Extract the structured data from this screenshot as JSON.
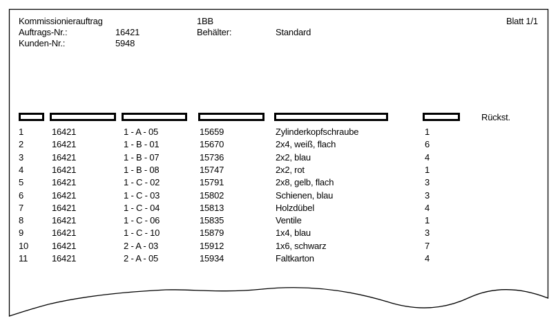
{
  "header": {
    "doc_type": "Kommissionierauftrag",
    "code": "1BB",
    "sheet": "Blatt 1/1",
    "order_label": "Auftrags-Nr.:",
    "order_value": "16421",
    "container_label": "Behälter:",
    "container_value": "Standard",
    "customer_label": "Kunden-Nr.:",
    "customer_value": "5948"
  },
  "table": {
    "columns": [
      "",
      "",
      "",
      "",
      "",
      ""
    ],
    "backorder_label": "Rückst.",
    "rows": [
      {
        "pos": "1",
        "order": "16421",
        "location": "1 - A - 05",
        "article": "15659",
        "description": "Zylinderkopfschraube",
        "qty": "1"
      },
      {
        "pos": "2",
        "order": "16421",
        "location": "1 - B - 01",
        "article": "15670",
        "description": "2x4, weiß, flach",
        "qty": "6"
      },
      {
        "pos": "3",
        "order": "16421",
        "location": "1 - B - 07",
        "article": "15736",
        "description": "2x2, blau",
        "qty": "4"
      },
      {
        "pos": "4",
        "order": "16421",
        "location": "1 - B - 08",
        "article": "15747",
        "description": "2x2, rot",
        "qty": "1"
      },
      {
        "pos": "5",
        "order": "16421",
        "location": "1 - C - 02",
        "article": "15791",
        "description": "2x8, gelb, flach",
        "qty": "3"
      },
      {
        "pos": "6",
        "order": "16421",
        "location": "1 - C - 03",
        "article": "15802",
        "description": "Schienen, blau",
        "qty": "3"
      },
      {
        "pos": "7",
        "order": "16421",
        "location": "1 - C - 04",
        "article": "15813",
        "description": "Holzdübel",
        "qty": "4"
      },
      {
        "pos": "8",
        "order": "16421",
        "location": "1 - C - 06",
        "article": "15835",
        "description": "Ventile",
        "qty": "1"
      },
      {
        "pos": "9",
        "order": "16421",
        "location": "1 - C - 10",
        "article": "15879",
        "description": "1x4, blau",
        "qty": "3"
      },
      {
        "pos": "10",
        "order": "16421",
        "location": "2 - A - 03",
        "article": "15912",
        "description": "1x6, schwarz",
        "qty": "7"
      },
      {
        "pos": "11",
        "order": "16421",
        "location": "2 - A - 05",
        "article": "15934",
        "description": "Faltkarton",
        "qty": "4"
      }
    ]
  }
}
